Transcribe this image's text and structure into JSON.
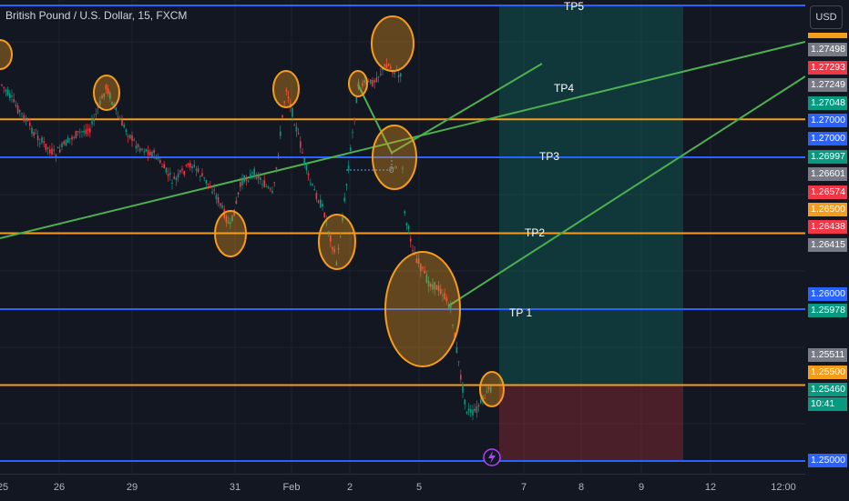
{
  "header": {
    "title": "British Pound / U.S. Dollar, 15, FXCM"
  },
  "currency_button": "USD",
  "levels": [
    {
      "name": "TP5",
      "label": "TP5",
      "price": 1.28,
      "color": "#2962ff"
    },
    {
      "name": "TP4",
      "label": "TP4",
      "price": 1.2725,
      "color": "#f59d1b"
    },
    {
      "name": "TP3",
      "label": "TP3",
      "price": 1.27,
      "color": "#2962ff"
    },
    {
      "name": "TP2",
      "label": "TP2",
      "price": 1.265,
      "color": "#f59d1b"
    },
    {
      "name": "TP1",
      "label": "TP 1",
      "price": 1.26,
      "color": "#2962ff"
    },
    {
      "name": "entry",
      "label": "",
      "price": 1.255,
      "color": "#f59d1b"
    },
    {
      "name": "stop",
      "label": "",
      "price": 1.25,
      "color": "#2962ff"
    }
  ],
  "price_axis": [
    {
      "text": "1.27498",
      "bg": "#787b86"
    },
    {
      "text": "1.27293",
      "bg": "#f23645"
    },
    {
      "text": "1.27249",
      "bg": "#787b86"
    },
    {
      "text": "1.27048",
      "bg": "#089981"
    },
    {
      "text": "1.27000",
      "bg": "#2962ff"
    },
    {
      "text": "1.27000",
      "bg": "#2962ff"
    },
    {
      "text": "1.26997",
      "bg": "#089981"
    },
    {
      "text": "1.26601",
      "bg": "#787b86"
    },
    {
      "text": "1.26574",
      "bg": "#f23645"
    },
    {
      "text": "1.26500",
      "bg": "#f59d1b"
    },
    {
      "text": "1.26438",
      "bg": "#f23645"
    },
    {
      "text": "1.26415",
      "bg": "#787b86"
    },
    {
      "text": "1.26000",
      "bg": "#2962ff"
    },
    {
      "text": "1.25978",
      "bg": "#089981"
    },
    {
      "text": "1.25511",
      "bg": "#787b86"
    },
    {
      "text": "1.25500",
      "bg": "#f59d1b"
    },
    {
      "text": "1.25460",
      "bg": "#089981"
    },
    {
      "text": "10:41",
      "bg": "#089981"
    },
    {
      "text": "1.25000",
      "bg": "#2962ff"
    }
  ],
  "time_axis": [
    "25",
    "26",
    "29",
    "31",
    "Feb",
    "2",
    "5",
    "7",
    "8",
    "9",
    "12",
    "12:00"
  ],
  "drawing_angle_label": "0°",
  "colors": {
    "background": "#131722",
    "up_candle": "#089981",
    "down_candle": "#f23645",
    "circle_stroke": "#f59d1b",
    "circle_fill": "rgba(245,157,27,0.35)",
    "trendline": "#4caf50",
    "profit_zone": "rgba(8,153,129,0.25)",
    "loss_zone": "rgba(242,54,69,0.25)"
  }
}
